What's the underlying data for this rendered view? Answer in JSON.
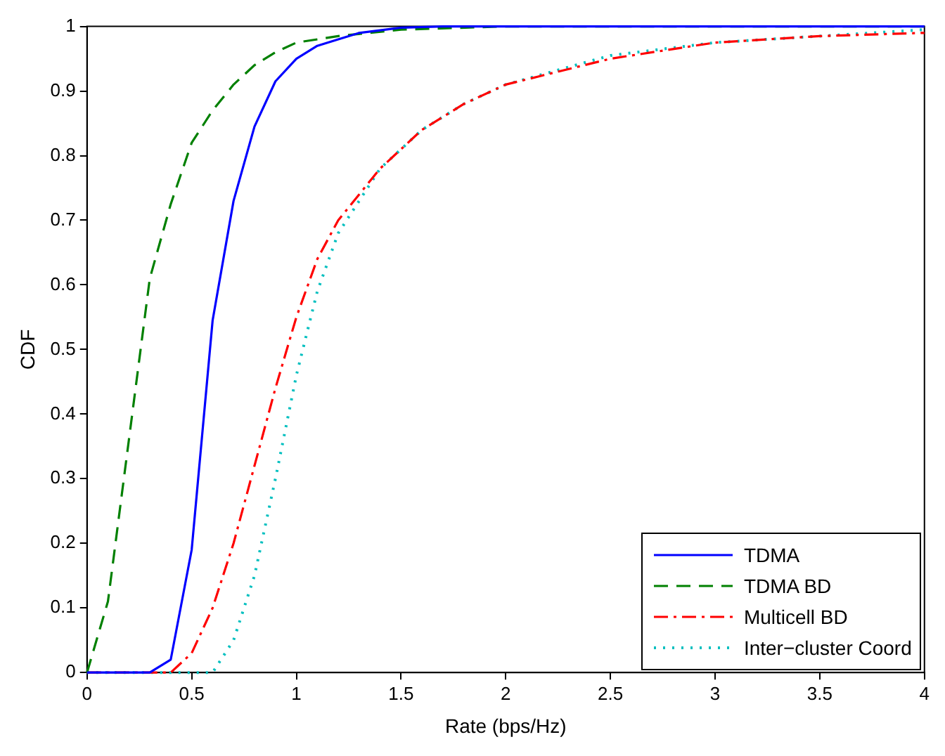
{
  "chart_data": {
    "type": "line",
    "xlabel": "Rate (bps/Hz)",
    "ylabel": "CDF",
    "xlim": [
      0,
      4
    ],
    "ylim": [
      0,
      1
    ],
    "xticks": [
      0,
      0.5,
      1,
      1.5,
      2,
      2.5,
      3,
      3.5,
      4
    ],
    "yticks": [
      0,
      0.1,
      0.2,
      0.3,
      0.4,
      0.5,
      0.6,
      0.7,
      0.8,
      0.9,
      1
    ],
    "grid": false,
    "legend": "bottom right",
    "marker": "none",
    "series": [
      {
        "name": "TDMA",
        "color": "#0000ff",
        "line_style": "solid",
        "x": [
          0,
          0.1,
          0.2,
          0.3,
          0.4,
          0.5,
          0.6,
          0.7,
          0.8,
          0.9,
          1.0,
          1.1,
          1.2,
          1.3,
          1.5,
          1.7,
          4
        ],
        "values": [
          0,
          0,
          0,
          0,
          0.02,
          0.19,
          0.545,
          0.73,
          0.845,
          0.915,
          0.95,
          0.97,
          0.98,
          0.99,
          0.998,
          1,
          1
        ]
      },
      {
        "name": "TDMA BD",
        "color": "#008000",
        "line_style": "dashed",
        "x": [
          0,
          0.1,
          0.2,
          0.3,
          0.4,
          0.5,
          0.6,
          0.7,
          0.8,
          0.9,
          1.0,
          1.2,
          1.5,
          2,
          4
        ],
        "values": [
          0,
          0.11,
          0.36,
          0.61,
          0.725,
          0.82,
          0.87,
          0.91,
          0.94,
          0.96,
          0.975,
          0.985,
          0.995,
          1,
          1
        ]
      },
      {
        "name": "Multicell BD",
        "color": "#ff0000",
        "line_style": "dashdot",
        "x": [
          0,
          0.4,
          0.5,
          0.6,
          0.7,
          0.8,
          0.9,
          1.0,
          1.1,
          1.2,
          1.4,
          1.6,
          1.8,
          2.0,
          2.5,
          3.0,
          3.5,
          4
        ],
        "values": [
          0,
          0,
          0.03,
          0.1,
          0.2,
          0.32,
          0.44,
          0.55,
          0.64,
          0.7,
          0.78,
          0.84,
          0.88,
          0.91,
          0.95,
          0.975,
          0.985,
          0.99
        ]
      },
      {
        "name": "Inter−cluster Coord",
        "color": "#00bfbf",
        "line_style": "dotted",
        "x": [
          0,
          0.6,
          0.7,
          0.8,
          0.9,
          1.0,
          1.1,
          1.2,
          1.4,
          1.6,
          1.8,
          2.0,
          2.5,
          3.0,
          3.5,
          4
        ],
        "values": [
          0,
          0,
          0.05,
          0.15,
          0.3,
          0.46,
          0.59,
          0.68,
          0.78,
          0.84,
          0.88,
          0.91,
          0.955,
          0.975,
          0.985,
          0.995
        ]
      }
    ]
  }
}
